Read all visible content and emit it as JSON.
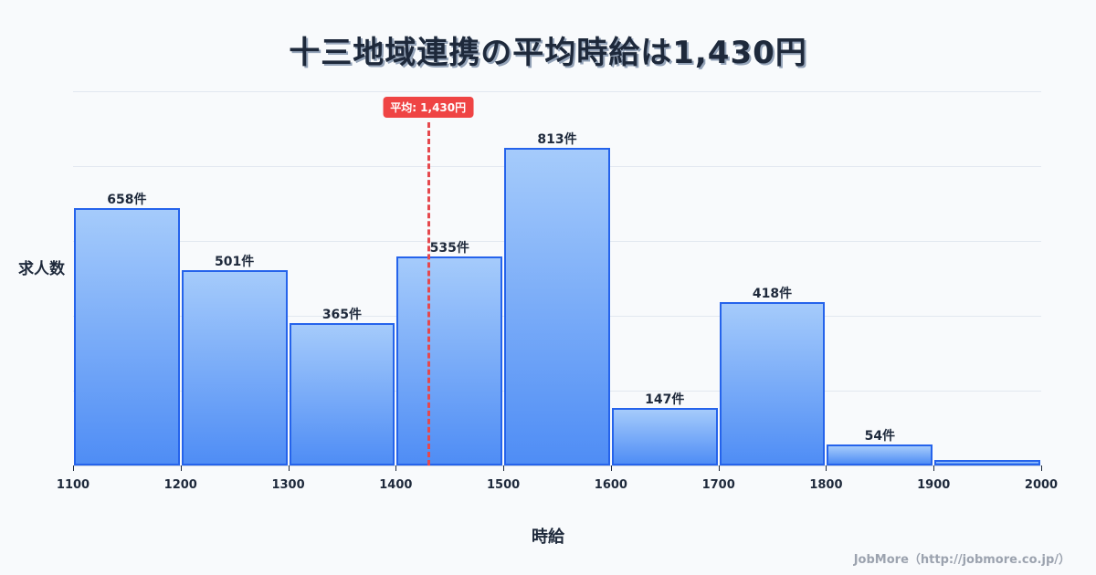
{
  "title": "十三地域連携の平均時給は1,430円",
  "mean_badge": "平均: 1,430円",
  "ylabel": "求人数",
  "xlabel": "時給",
  "credit": "JobMore（http://jobmore.co.jp/）",
  "colors": {
    "bar_fill_top": "#a5cbfb",
    "bar_fill_bottom": "#4f8df5",
    "bar_border": "#2563eb",
    "mean_line": "#e5484d",
    "text": "#1e293b"
  },
  "chart_data": {
    "type": "bar",
    "title": "十三地域連携の平均時給は1,430円",
    "xlabel": "時給",
    "ylabel": "求人数",
    "categories": [
      "1100-1200",
      "1200-1300",
      "1300-1400",
      "1400-1500",
      "1500-1600",
      "1600-1700",
      "1700-1800",
      "1800-1900",
      "1900-2000"
    ],
    "bin_edges": [
      1100,
      1200,
      1300,
      1400,
      1500,
      1600,
      1700,
      1800,
      1900,
      2000
    ],
    "values": [
      658,
      501,
      365,
      535,
      813,
      147,
      418,
      54,
      14
    ],
    "labels": [
      "658件",
      "501件",
      "365件",
      "535件",
      "813件",
      "147件",
      "418件",
      "54件",
      ""
    ],
    "x_ticks": [
      "1100",
      "1200",
      "1300",
      "1400",
      "1500",
      "1600",
      "1700",
      "1800",
      "1900",
      "2000"
    ],
    "mean": 1430,
    "mean_label": "平均: 1,430円",
    "ylim": [
      0,
      958
    ],
    "grid": true,
    "legend": "none"
  }
}
